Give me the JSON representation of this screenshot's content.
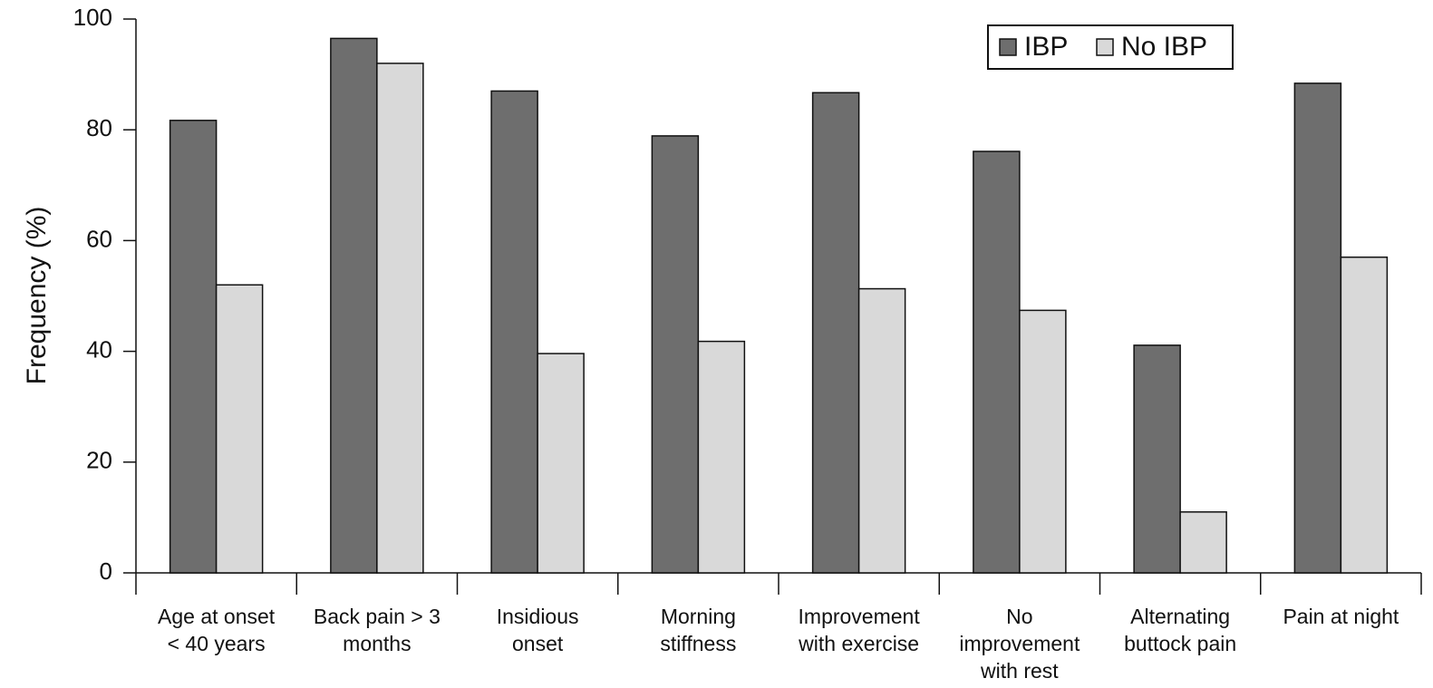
{
  "chart_data": {
    "type": "bar",
    "ylabel": "Frequency (%)",
    "xlabel": "",
    "ylim": [
      0,
      100
    ],
    "yticks": [
      0,
      20,
      40,
      60,
      80,
      100
    ],
    "categories": [
      [
        "Age at onset",
        "< 40 years"
      ],
      [
        "Back pain > 3",
        "months"
      ],
      [
        "Insidious",
        "onset"
      ],
      [
        "Morning",
        "stiffness"
      ],
      [
        "Improvement",
        "with exercise"
      ],
      [
        "No",
        "improvement",
        "with rest"
      ],
      [
        "Alternating",
        "buttock pain"
      ],
      [
        "Pain at night"
      ]
    ],
    "series": [
      {
        "name": "IBP",
        "color": "#6e6e6e",
        "values": [
          81.7,
          96.5,
          87,
          78.9,
          86.7,
          76.1,
          41.1,
          88.4
        ]
      },
      {
        "name": "No IBP",
        "color": "#d9d9d9",
        "values": [
          52,
          92,
          39.6,
          41.8,
          51.3,
          47.4,
          11,
          57
        ]
      }
    ],
    "legend": {
      "position": "top-right",
      "boxed": true
    },
    "grid": false
  }
}
